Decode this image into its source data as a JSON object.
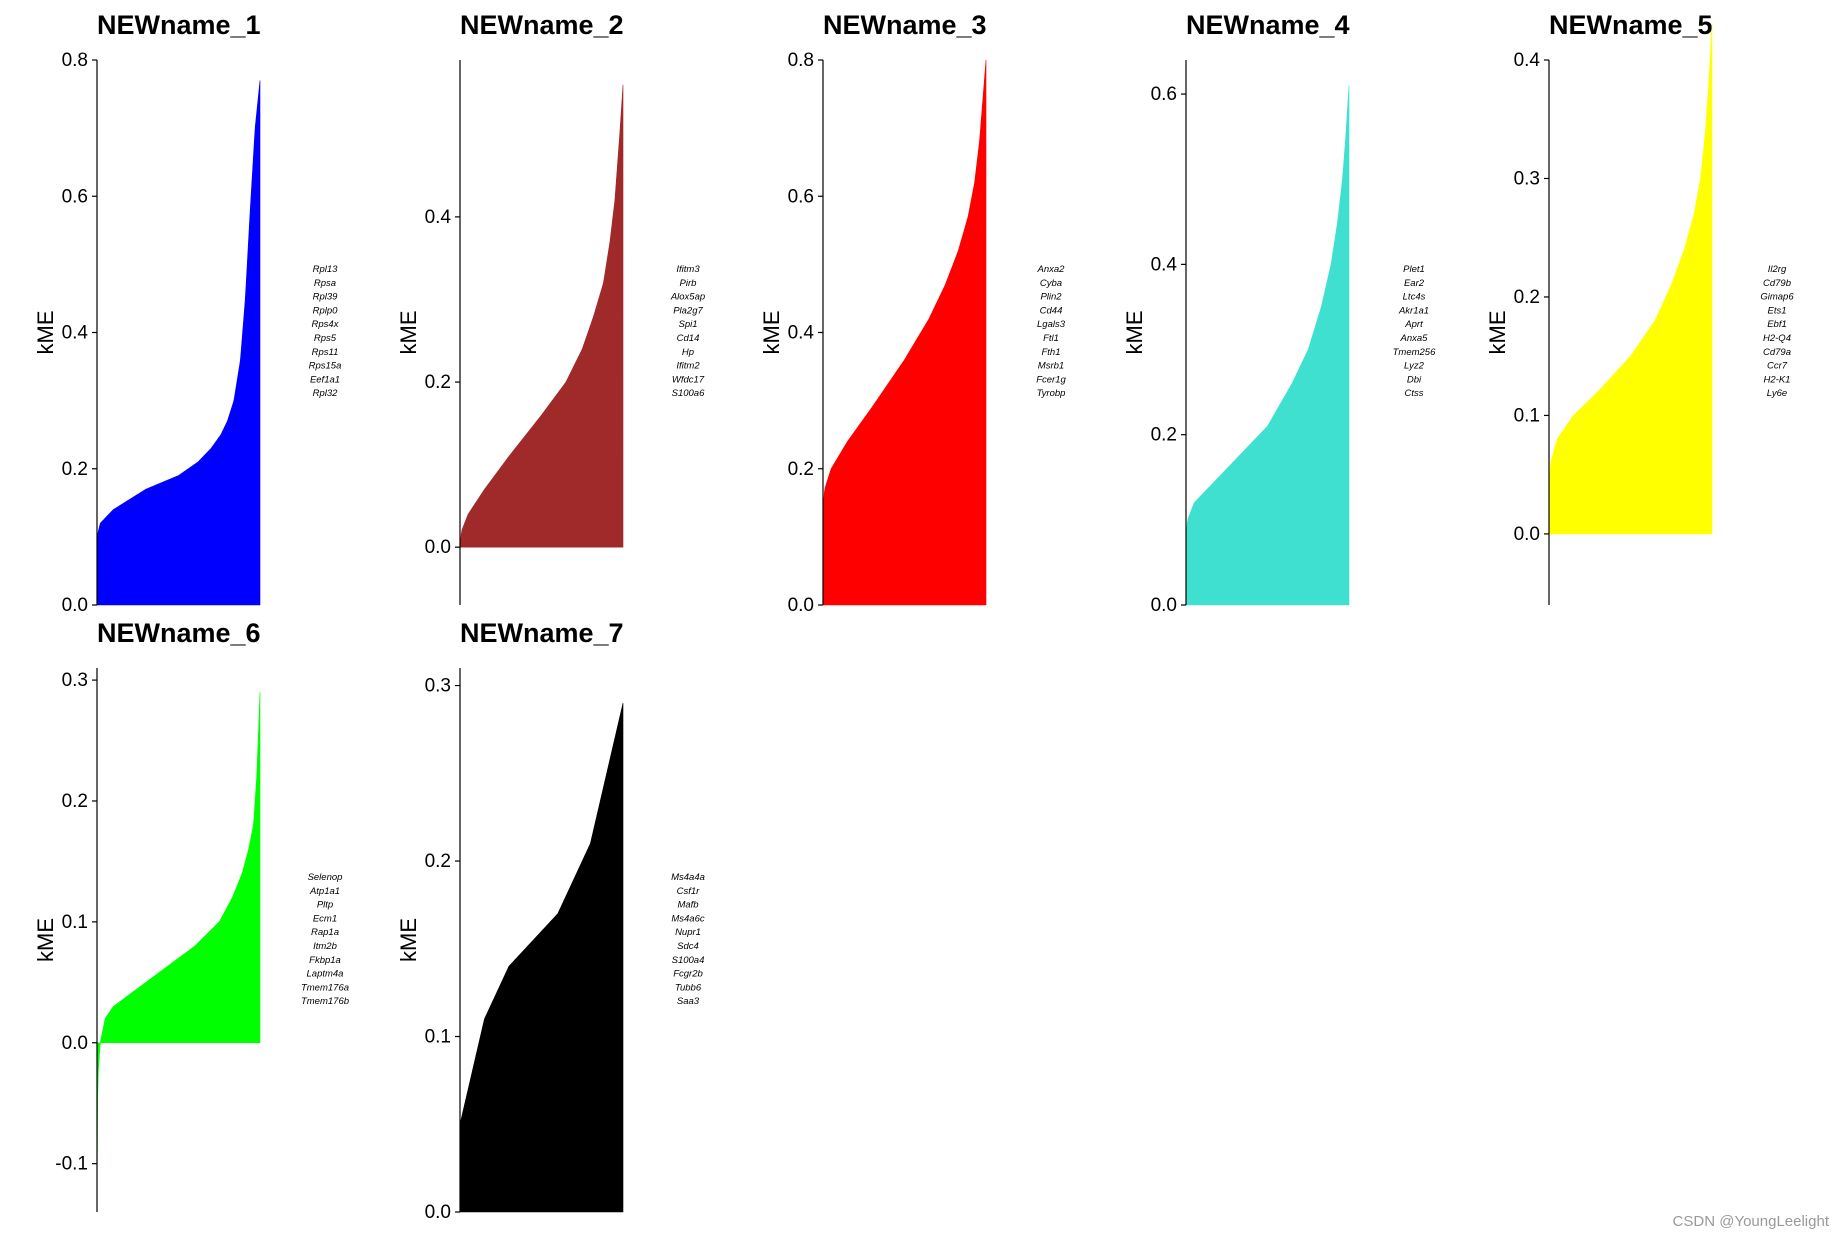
{
  "watermark": "CSDN @YoungLeelight",
  "chart_data": [
    {
      "type": "area",
      "title": "NEWname_1",
      "ylabel": "kME",
      "color": "#0000ff",
      "ylim": [
        0,
        0.8
      ],
      "yticks": [
        0.0,
        0.2,
        0.4,
        0.6,
        0.8
      ],
      "tick_labels": [
        "0.0",
        "0.2",
        "0.4",
        "0.6",
        "0.8"
      ],
      "curve_x": [
        0,
        0.02,
        0.1,
        0.3,
        0.5,
        0.62,
        0.7,
        0.76,
        0.8,
        0.84,
        0.88,
        0.91,
        0.94,
        0.97,
        1.0
      ],
      "curve_y": [
        0.1,
        0.12,
        0.14,
        0.17,
        0.19,
        0.21,
        0.23,
        0.25,
        0.27,
        0.3,
        0.36,
        0.45,
        0.58,
        0.7,
        0.77
      ],
      "genes": [
        "Rpl13",
        "Rpsa",
        "Rpl39",
        "Rplp0",
        "Rps4x",
        "Rps5",
        "Rps11",
        "Rps15a",
        "Eef1a1",
        "Rpl32"
      ]
    },
    {
      "type": "area",
      "title": "NEWname_2",
      "ylabel": "kME",
      "color": "#a0292a",
      "ylim": [
        -0.07,
        0.59
      ],
      "yticks": [
        0.0,
        0.2,
        0.4
      ],
      "tick_labels": [
        "0.0",
        "0.2",
        "0.4"
      ],
      "curve_x": [
        0,
        0.01,
        0.05,
        0.15,
        0.3,
        0.5,
        0.65,
        0.75,
        0.82,
        0.88,
        0.92,
        0.95,
        0.98,
        1.0
      ],
      "curve_y": [
        0.0,
        0.02,
        0.04,
        0.07,
        0.11,
        0.16,
        0.2,
        0.24,
        0.28,
        0.32,
        0.37,
        0.42,
        0.5,
        0.56
      ],
      "genes": [
        "Ifitm3",
        "Pirb",
        "Alox5ap",
        "Pla2g7",
        "Spi1",
        "Cd14",
        "Hp",
        "Ifitm2",
        "Wfdc17",
        "S100a6"
      ]
    },
    {
      "type": "area",
      "title": "NEWname_3",
      "ylabel": "kME",
      "color": "#ff0000",
      "ylim": [
        0,
        0.8
      ],
      "yticks": [
        0.0,
        0.2,
        0.4,
        0.6,
        0.8
      ],
      "tick_labels": [
        "0.0",
        "0.2",
        "0.4",
        "0.6",
        "0.8"
      ],
      "curve_x": [
        0,
        0.01,
        0.05,
        0.15,
        0.3,
        0.5,
        0.65,
        0.75,
        0.83,
        0.89,
        0.93,
        0.96,
        0.98,
        1.0
      ],
      "curve_y": [
        0.14,
        0.17,
        0.2,
        0.24,
        0.29,
        0.36,
        0.42,
        0.47,
        0.52,
        0.57,
        0.62,
        0.68,
        0.74,
        0.8
      ],
      "genes": [
        "Anxa2",
        "Cyba",
        "Plin2",
        "Cd44",
        "Lgals3",
        "Ftl1",
        "Fth1",
        "Msrb1",
        "Fcer1g",
        "Tyrobp"
      ]
    },
    {
      "type": "area",
      "title": "NEWname_4",
      "ylabel": "kME",
      "color": "#40e0d0",
      "ylim": [
        0,
        0.64
      ],
      "yticks": [
        0.0,
        0.2,
        0.4,
        0.6
      ],
      "tick_labels": [
        "0.0",
        "0.2",
        "0.4",
        "0.6"
      ],
      "curve_x": [
        0,
        0.01,
        0.05,
        0.15,
        0.3,
        0.5,
        0.65,
        0.75,
        0.83,
        0.89,
        0.93,
        0.96,
        0.98,
        1.0
      ],
      "curve_y": [
        0.08,
        0.1,
        0.12,
        0.14,
        0.17,
        0.21,
        0.26,
        0.3,
        0.35,
        0.4,
        0.45,
        0.5,
        0.55,
        0.61
      ],
      "genes": [
        "Plet1",
        "Ear2",
        "Ltc4s",
        "Akr1a1",
        "Aprt",
        "Anxa5",
        "Tmem256",
        "Lyz2",
        "Dbi",
        "Ctss"
      ]
    },
    {
      "type": "area",
      "title": "NEWname_5",
      "ylabel": "kME",
      "color": "#ffff00",
      "ylim": [
        -0.06,
        0.4
      ],
      "yticks": [
        0.0,
        0.1,
        0.2,
        0.3,
        0.4
      ],
      "tick_labels": [
        "0.0",
        "0.1",
        "0.2",
        "0.3",
        "0.4"
      ],
      "curve_x": [
        0,
        0.01,
        0.05,
        0.15,
        0.3,
        0.5,
        0.65,
        0.75,
        0.83,
        0.89,
        0.93,
        0.96,
        0.98,
        1.0
      ],
      "curve_y": [
        0.04,
        0.06,
        0.08,
        0.1,
        0.12,
        0.15,
        0.18,
        0.21,
        0.24,
        0.27,
        0.3,
        0.34,
        0.38,
        0.43
      ],
      "genes": [
        "Il2rg",
        "Cd79b",
        "Gimap6",
        "Ets1",
        "Ebf1",
        "H2-Q4",
        "Cd79a",
        "Ccr7",
        "H2-K1",
        "Ly6e"
      ]
    },
    {
      "type": "area",
      "title": "NEWname_6",
      "ylabel": "kME",
      "color": "#00ff00",
      "ylim": [
        -0.14,
        0.31
      ],
      "yticks": [
        -0.1,
        0.0,
        0.1,
        0.2,
        0.3
      ],
      "tick_labels": [
        "-0.1",
        "0.0",
        "0.1",
        "0.2",
        "0.3"
      ],
      "curve_x": [
        0,
        0.005,
        0.02,
        0.05,
        0.1,
        0.2,
        0.4,
        0.6,
        0.75,
        0.83,
        0.89,
        0.93,
        0.96,
        0.98,
        1.0
      ],
      "curve_y": [
        -0.13,
        -0.03,
        0.0,
        0.02,
        0.03,
        0.04,
        0.06,
        0.08,
        0.1,
        0.12,
        0.14,
        0.16,
        0.18,
        0.22,
        0.29
      ],
      "genes": [
        "Selenop",
        "Atp1a1",
        "Pltp",
        "Ecm1",
        "Rap1a",
        "Itm2b",
        "Fkbp1a",
        "Laptm4a",
        "Tmem176a",
        "Tmem176b"
      ]
    },
    {
      "type": "area",
      "title": "NEWname_7",
      "ylabel": "kME",
      "color": "#000000",
      "ylim": [
        0,
        0.31
      ],
      "yticks": [
        0.0,
        0.1,
        0.2,
        0.3
      ],
      "tick_labels": [
        "0.0",
        "0.1",
        "0.2",
        "0.3"
      ],
      "curve_x": [
        0,
        0.05,
        0.1,
        0.15,
        0.2,
        0.3,
        0.4,
        0.5,
        0.6,
        0.7,
        0.8,
        0.85,
        0.9,
        0.95,
        1.0
      ],
      "curve_y": [
        0.05,
        0.07,
        0.09,
        0.11,
        0.12,
        0.14,
        0.15,
        0.16,
        0.17,
        0.19,
        0.21,
        0.23,
        0.25,
        0.27,
        0.29
      ],
      "genes": [
        "Ms4a4a",
        "Csf1r",
        "Mafb",
        "Ms4a6c",
        "Nupr1",
        "Sdc4",
        "S100a4",
        "Fcgr2b",
        "Tubb6",
        "Saa3"
      ]
    }
  ]
}
